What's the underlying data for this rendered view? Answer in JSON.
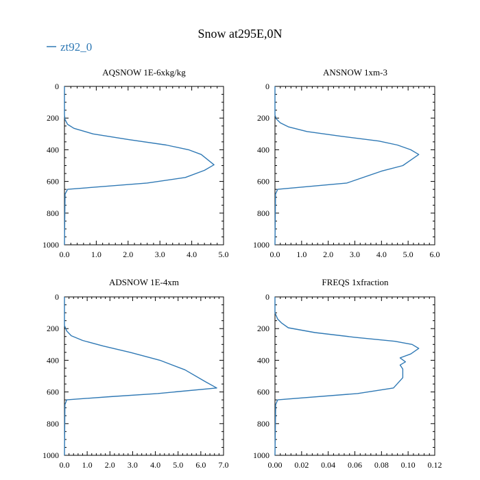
{
  "figure": {
    "title": "Snow at295E,0N",
    "legend_label": "zt92_0",
    "series_color": "#2e78b4"
  },
  "chart_data": [
    {
      "type": "line",
      "title": "AQSNOW  1E-6xkg/kg",
      "xlim": [
        0,
        5.0
      ],
      "ylim": [
        1000,
        0
      ],
      "y_inverted": true,
      "xticks": [
        0,
        1,
        2,
        3,
        4,
        5
      ],
      "xtick_labels": [
        "0.0",
        "1.0",
        "2.0",
        "3.0",
        "4.0",
        "5.0"
      ],
      "yticks": [
        0,
        200,
        400,
        600,
        800,
        1000
      ],
      "ytick_labels": [
        "0",
        "200",
        "400",
        "600",
        "800",
        "1000"
      ],
      "series": [
        {
          "name": "zt92_0",
          "x": [
            0,
            0,
            0,
            0.02,
            0.1,
            0.3,
            0.9,
            2.0,
            3.2,
            3.9,
            4.3,
            4.7,
            4.4,
            3.8,
            2.6,
            0.1,
            0.02,
            0
          ],
          "y": [
            0,
            100,
            180,
            210,
            240,
            265,
            300,
            335,
            370,
            400,
            430,
            495,
            530,
            575,
            610,
            650,
            680,
            1000
          ]
        }
      ]
    },
    {
      "type": "line",
      "title": "ANSNOW  1xm-3",
      "xlim": [
        0,
        6.0
      ],
      "ylim": [
        1000,
        0
      ],
      "y_inverted": true,
      "xticks": [
        0,
        1,
        2,
        3,
        4,
        5,
        6
      ],
      "xtick_labels": [
        "0.0",
        "1.0",
        "2.0",
        "3.0",
        "4.0",
        "5.0",
        "6.0"
      ],
      "yticks": [
        0,
        200,
        400,
        600,
        800,
        1000
      ],
      "ytick_labels": [
        "0",
        "200",
        "400",
        "600",
        "800",
        "1000"
      ],
      "series": [
        {
          "name": "zt92_0",
          "x": [
            0,
            0,
            0,
            0.05,
            0.2,
            0.5,
            1.2,
            2.5,
            3.9,
            4.6,
            5.1,
            5.4,
            5.1,
            4.8,
            4.0,
            2.7,
            0.1,
            0.02,
            0
          ],
          "y": [
            0,
            100,
            180,
            205,
            230,
            255,
            285,
            315,
            345,
            370,
            400,
            430,
            465,
            500,
            535,
            610,
            650,
            680,
            1000
          ]
        }
      ]
    },
    {
      "type": "line",
      "title": "ADSNOW  1E-4xm",
      "xlim": [
        0,
        7.0
      ],
      "ylim": [
        1000,
        0
      ],
      "y_inverted": true,
      "xticks": [
        0,
        1,
        2,
        3,
        4,
        5,
        6,
        7
      ],
      "xtick_labels": [
        "0.0",
        "1.0",
        "2.0",
        "3.0",
        "4.0",
        "5.0",
        "6.0",
        "7.0"
      ],
      "yticks": [
        0,
        200,
        400,
        600,
        800,
        1000
      ],
      "ytick_labels": [
        "0",
        "200",
        "400",
        "600",
        "800",
        "1000"
      ],
      "series": [
        {
          "name": "zt92_0",
          "x": [
            0,
            0,
            0,
            0.1,
            0.3,
            0.8,
            1.7,
            2.9,
            4.2,
            5.3,
            6.2,
            6.7,
            4.1,
            2.0,
            0.1,
            0.02,
            0
          ],
          "y": [
            0,
            100,
            180,
            215,
            245,
            275,
            310,
            350,
            400,
            460,
            535,
            575,
            610,
            630,
            650,
            680,
            1000
          ]
        }
      ]
    },
    {
      "type": "line",
      "title": "FREQS  1xfraction",
      "xlim": [
        0,
        0.12
      ],
      "ylim": [
        1000,
        0
      ],
      "y_inverted": true,
      "xticks": [
        0,
        0.02,
        0.04,
        0.06,
        0.08,
        0.1,
        0.12
      ],
      "xtick_labels": [
        "0.00",
        "0.02",
        "0.04",
        "0.06",
        "0.08",
        "0.10",
        "0.12"
      ],
      "yticks": [
        0,
        200,
        400,
        600,
        800,
        1000
      ],
      "ytick_labels": [
        "0",
        "200",
        "400",
        "600",
        "800",
        "1000"
      ],
      "series": [
        {
          "name": "zt92_0",
          "x": [
            0,
            0,
            0.002,
            0.005,
            0.01,
            0.03,
            0.06,
            0.09,
            0.103,
            0.108,
            0.102,
            0.094,
            0.098,
            0.094,
            0.096,
            0.096,
            0.089,
            0.062,
            0.002,
            0.0005,
            0
          ],
          "y": [
            0,
            100,
            140,
            165,
            195,
            225,
            255,
            280,
            300,
            325,
            360,
            385,
            410,
            430,
            455,
            510,
            575,
            610,
            650,
            680,
            1000
          ]
        }
      ]
    }
  ]
}
